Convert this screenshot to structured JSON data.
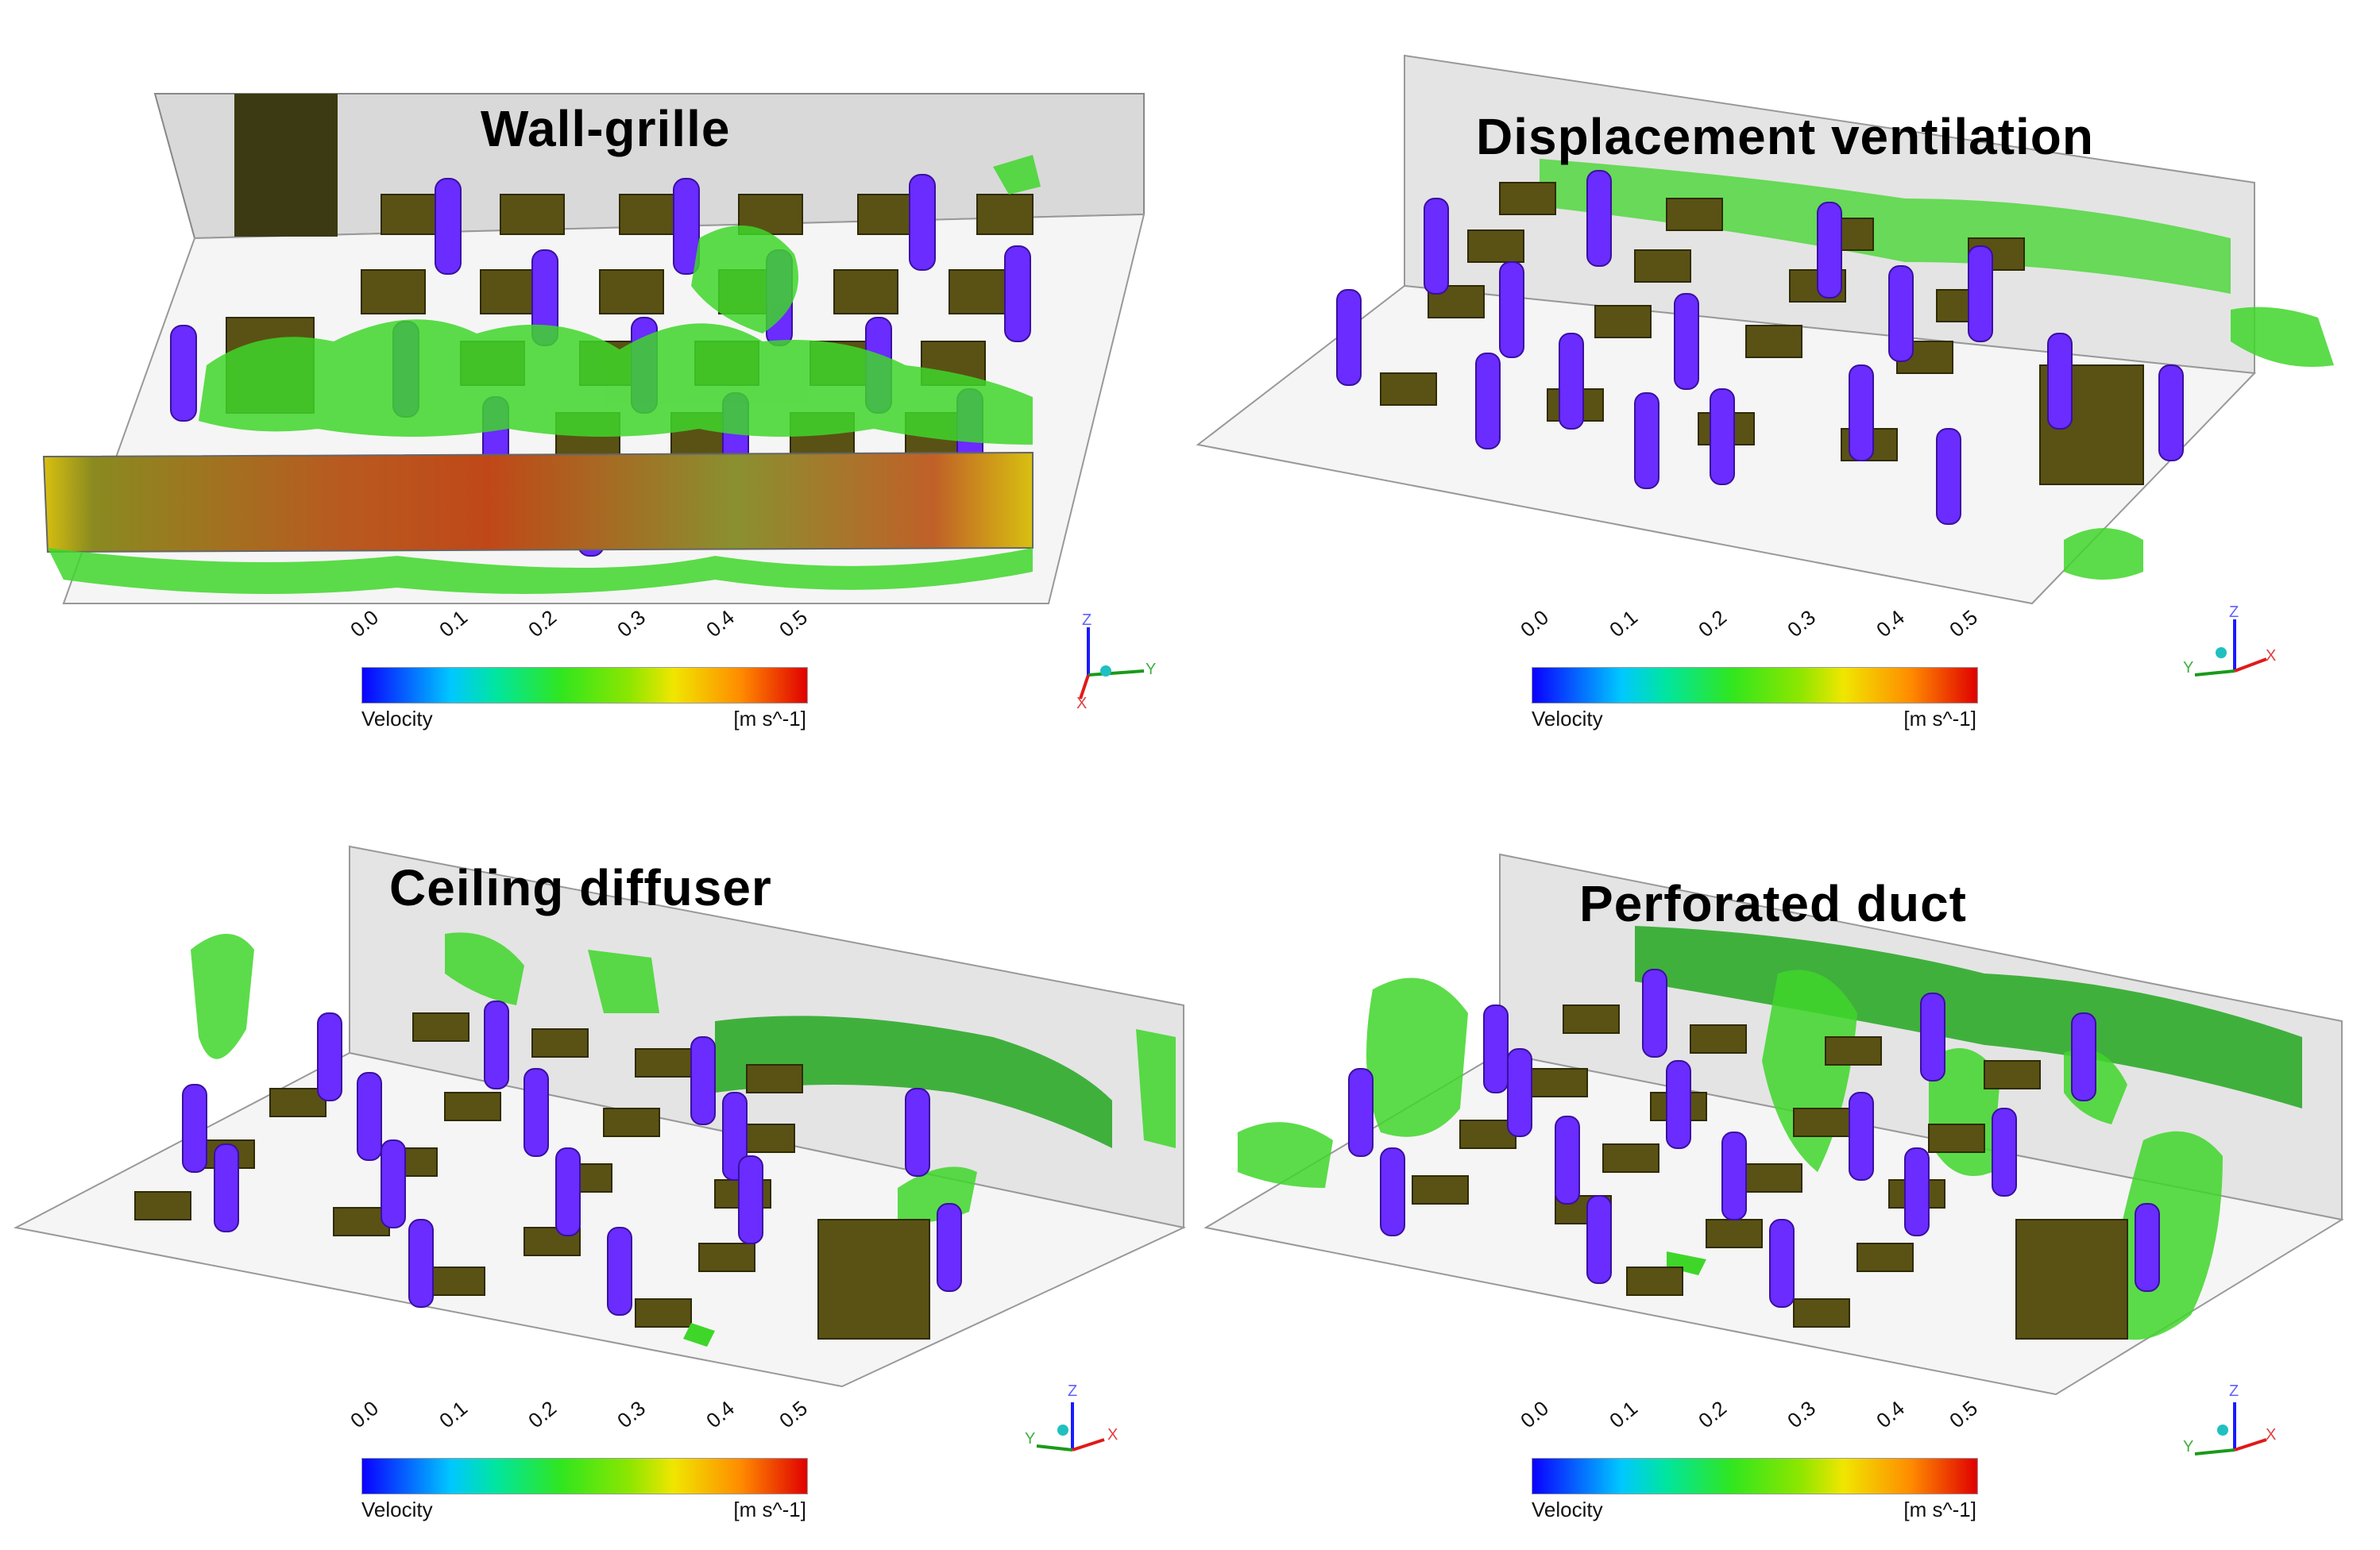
{
  "panels": [
    {
      "title": "Wall-grille"
    },
    {
      "title": "Displacement ventilation"
    },
    {
      "title": "Ceiling diffuser"
    },
    {
      "title": "Perforated duct"
    }
  ],
  "legend": {
    "ticks": [
      "0.0",
      "0.1",
      "0.2",
      "0.3",
      "0.4",
      "0.5"
    ],
    "variable": "Velocity",
    "unit": "[m s^-1]",
    "colors": [
      "#0a00ff",
      "#00c8ff",
      "#32e61e",
      "#f0e600",
      "#ff8c00",
      "#e00000"
    ]
  },
  "axes_triad": {
    "panel1": [
      "Z",
      "Y",
      "X"
    ],
    "panel2": [
      "Z",
      "Y",
      "X"
    ],
    "panel3": [
      "Z",
      "Y",
      "X"
    ],
    "panel4": [
      "Z",
      "Y",
      "X"
    ]
  },
  "colors": {
    "cylinder": "#6a2cff",
    "desk": "#5a5214",
    "iso_surface": "#3fd62a",
    "wall": "#d8d8d8",
    "floor": "#f4f4f4"
  }
}
